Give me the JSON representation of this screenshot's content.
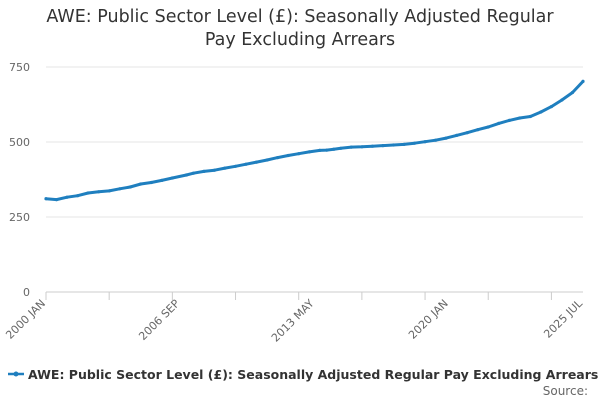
{
  "chart_data": {
    "type": "line",
    "title": "AWE: Public Sector Level (£): Seasonally Adjusted Regular Pay Excluding Arrears",
    "title_lines": [
      "AWE: Public Sector Level (£): Seasonally Adjusted Regular",
      "Pay Excluding Arrears"
    ],
    "xlabel": "",
    "ylabel": "",
    "x_tick_labels": [
      "2000 JAN",
      "2006 SEP",
      "2013 MAY",
      "2020 JAN",
      "2025 JUL"
    ],
    "y_ticks": [
      0,
      250,
      500,
      750
    ],
    "ylim": [
      0,
      750
    ],
    "xlim": [
      "2000-01",
      "2025-07"
    ],
    "grid": "horizontal",
    "legend_position": "bottom",
    "series": [
      {
        "name": "AWE: Public Sector Level (£): Seasonally Adjusted Regular Pay Excluding Arrears",
        "color": "#1f7fbf",
        "points": [
          [
            "2000-01",
            311
          ],
          [
            "2000-07",
            308
          ],
          [
            "2001-01",
            316
          ],
          [
            "2001-07",
            321
          ],
          [
            "2002-01",
            330
          ],
          [
            "2002-07",
            334
          ],
          [
            "2003-01",
            337
          ],
          [
            "2003-07",
            344
          ],
          [
            "2004-01",
            350
          ],
          [
            "2004-07",
            360
          ],
          [
            "2005-01",
            365
          ],
          [
            "2005-07",
            372
          ],
          [
            "2006-01",
            380
          ],
          [
            "2006-09",
            390
          ],
          [
            "2007-01",
            396
          ],
          [
            "2007-07",
            402
          ],
          [
            "2008-01",
            406
          ],
          [
            "2008-07",
            413
          ],
          [
            "2009-01",
            419
          ],
          [
            "2009-07",
            426
          ],
          [
            "2010-01",
            433
          ],
          [
            "2010-07",
            440
          ],
          [
            "2011-01",
            448
          ],
          [
            "2011-07",
            455
          ],
          [
            "2012-01",
            461
          ],
          [
            "2012-07",
            467
          ],
          [
            "2013-01",
            472
          ],
          [
            "2013-05",
            473
          ],
          [
            "2013-09",
            476
          ],
          [
            "2014-01",
            479
          ],
          [
            "2014-07",
            483
          ],
          [
            "2015-01",
            484
          ],
          [
            "2015-07",
            486
          ],
          [
            "2016-01",
            488
          ],
          [
            "2016-07",
            490
          ],
          [
            "2017-01",
            492
          ],
          [
            "2017-07",
            496
          ],
          [
            "2018-01",
            501
          ],
          [
            "2018-07",
            506
          ],
          [
            "2019-01",
            513
          ],
          [
            "2019-07",
            522
          ],
          [
            "2020-01",
            531
          ],
          [
            "2020-07",
            541
          ],
          [
            "2021-01",
            550
          ],
          [
            "2021-07",
            562
          ],
          [
            "2022-01",
            572
          ],
          [
            "2022-07",
            580
          ],
          [
            "2023-01",
            585
          ],
          [
            "2023-07",
            600
          ],
          [
            "2024-01",
            618
          ],
          [
            "2024-07",
            640
          ],
          [
            "2025-01",
            665
          ],
          [
            "2025-07",
            702
          ]
        ]
      }
    ]
  },
  "legend_label": "AWE: Public Sector Level (£): Seasonally Adjusted Regular Pay Excluding Arrears",
  "source_label": "Source:"
}
